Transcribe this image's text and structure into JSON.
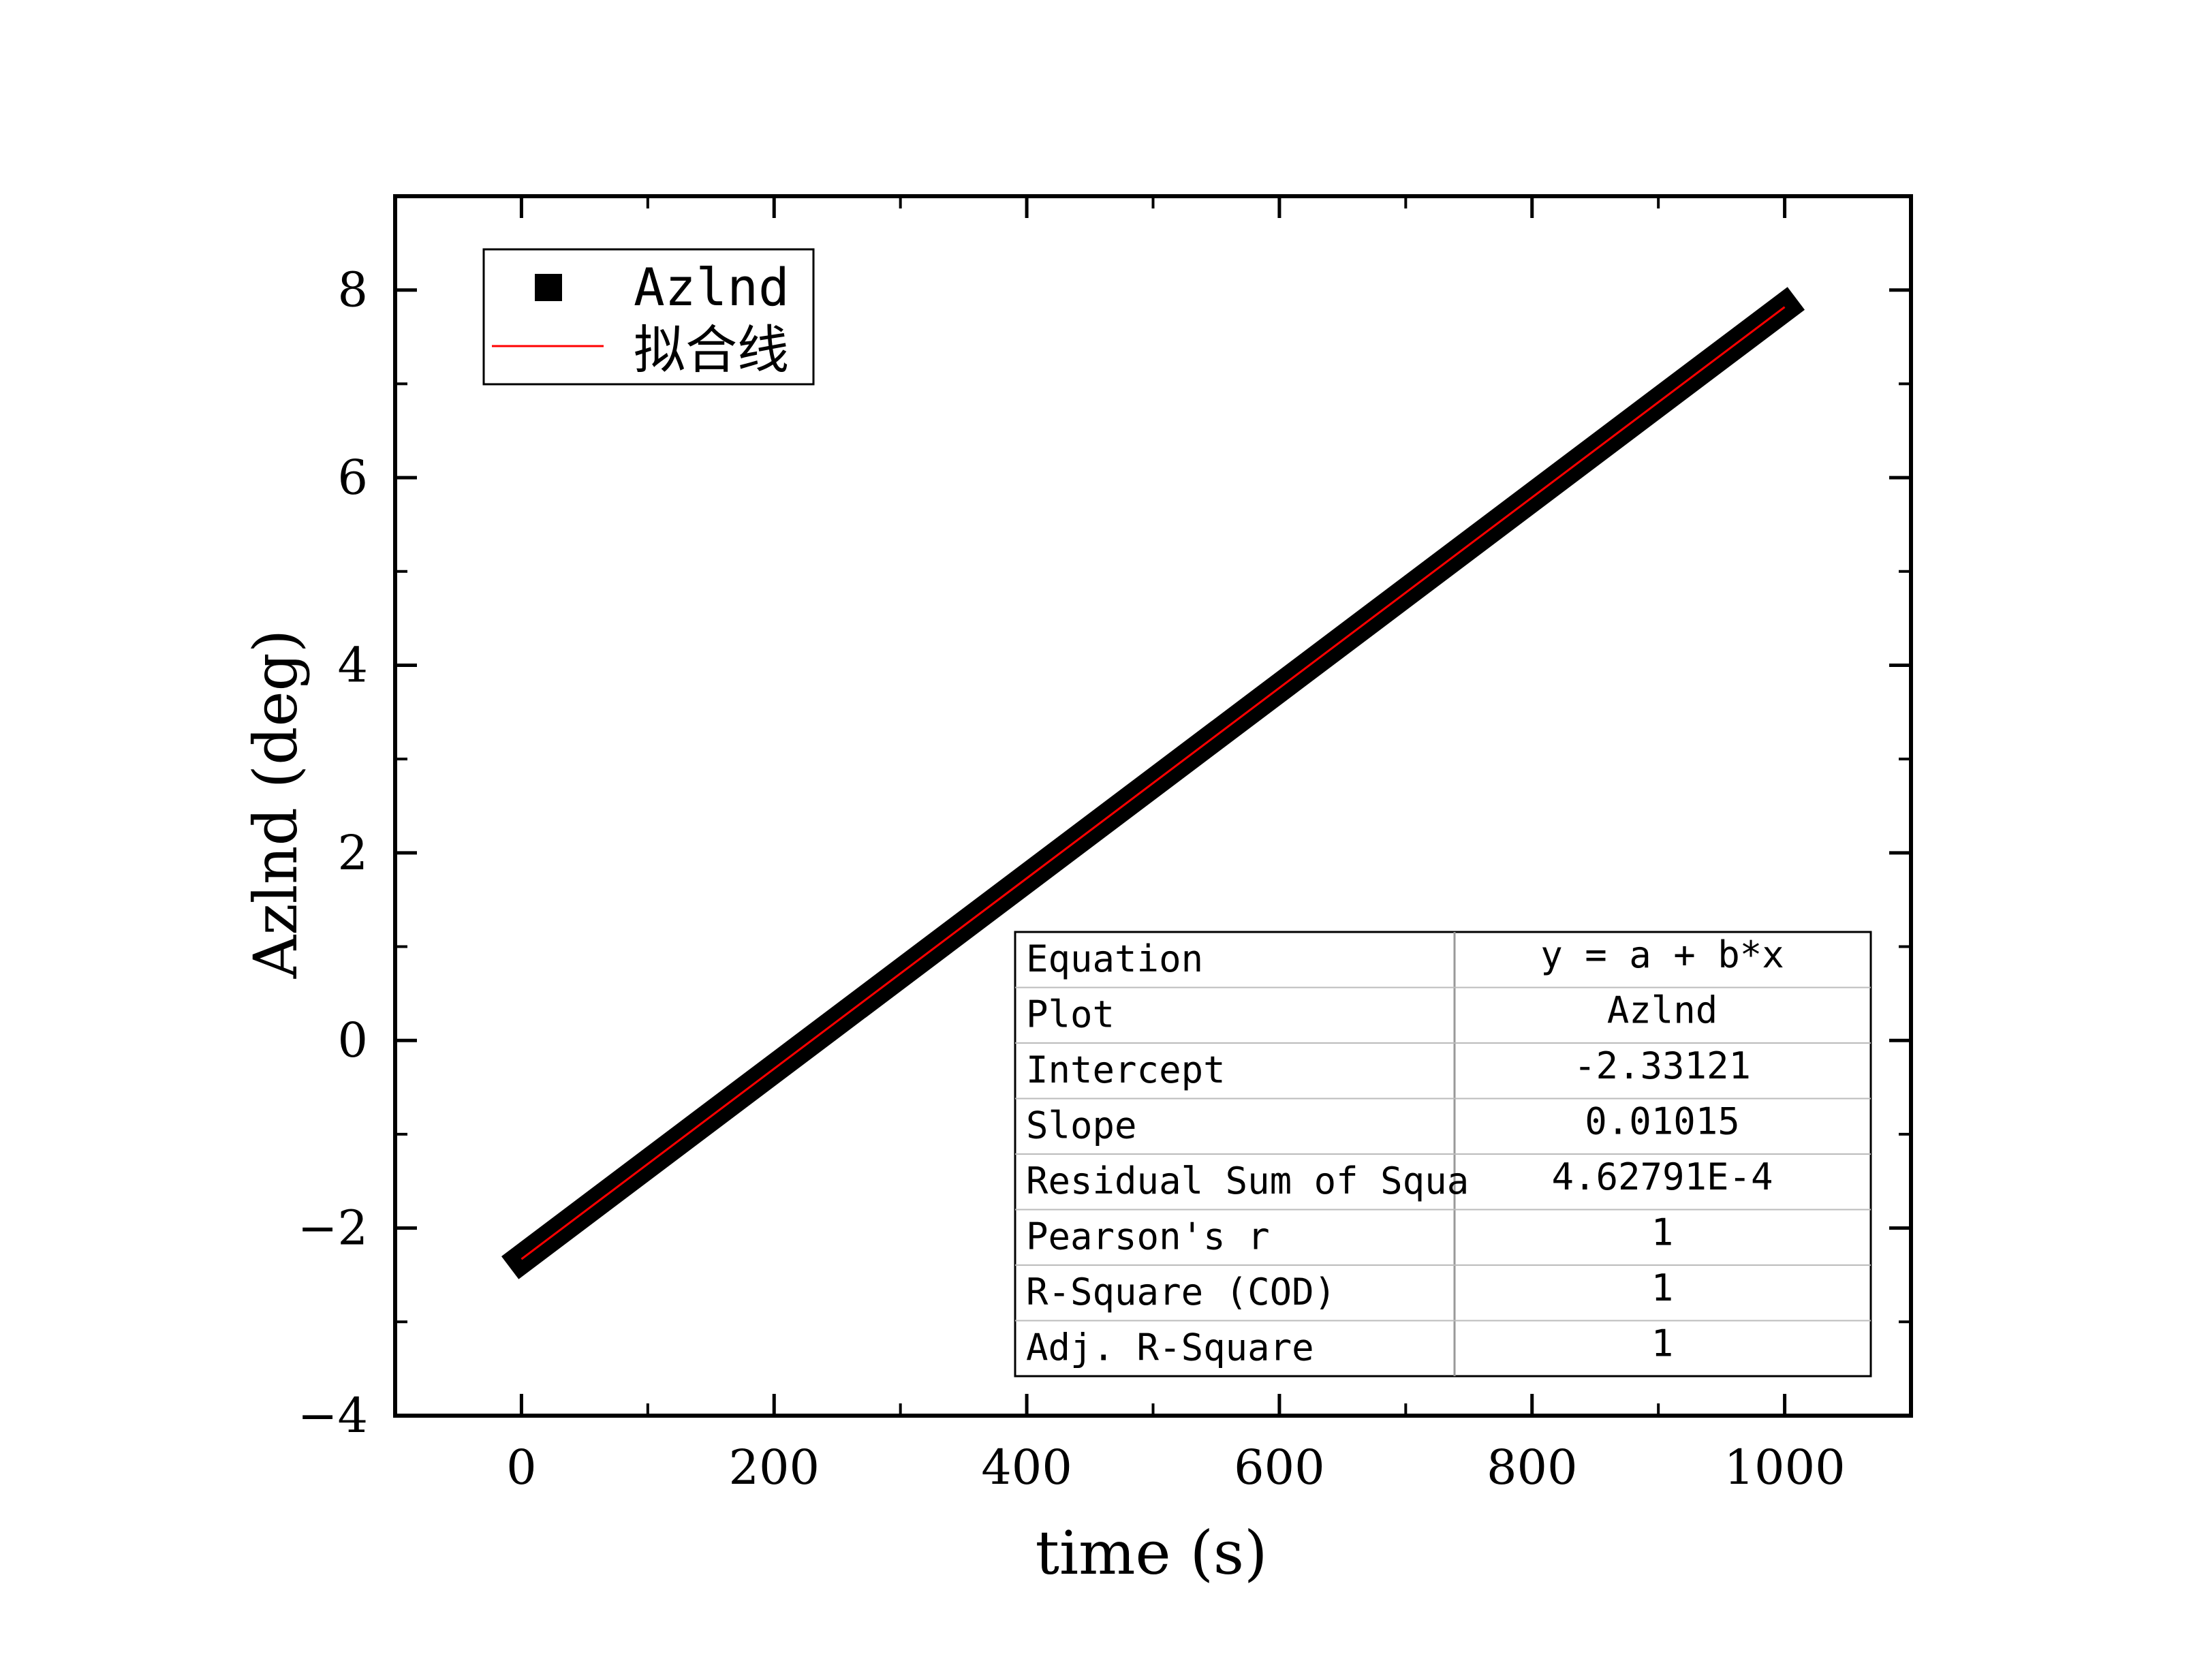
{
  "chart_data": {
    "type": "scatter",
    "x_label": "time (s)",
    "y_label": "Azlnd (deg)",
    "x_range": [
      -100,
      1100
    ],
    "y_range": [
      -4,
      9
    ],
    "x_ticks": [
      0,
      200,
      400,
      600,
      800,
      1000
    ],
    "y_ticks": [
      -4,
      -2,
      0,
      2,
      4,
      6,
      8
    ],
    "series": [
      {
        "name": "Azlnd",
        "kind": "scatter-dense",
        "color": "#000000",
        "marker": "square",
        "x_start": 0,
        "x_end": 1000,
        "y_start": -2.33121,
        "y_end": 7.81879
      },
      {
        "name": "拟合线",
        "kind": "line",
        "color": "#ff0000",
        "x": [
          0,
          1000
        ],
        "y": [
          -2.33121,
          7.81879
        ]
      }
    ],
    "legend": {
      "position": "top-left",
      "items": [
        "Azlnd",
        "拟合线"
      ]
    },
    "fit_table": {
      "rows": [
        [
          "Equation",
          "y = a + b*x"
        ],
        [
          "Plot",
          "Azlnd"
        ],
        [
          "Intercept",
          "-2.33121"
        ],
        [
          "Slope",
          "0.01015"
        ],
        [
          "Residual Sum of Squa",
          "4.62791E-4"
        ],
        [
          "Pearson's r",
          "1"
        ],
        [
          "R-Square (COD)",
          "1"
        ],
        [
          "Adj. R-Square",
          "1"
        ]
      ]
    }
  }
}
